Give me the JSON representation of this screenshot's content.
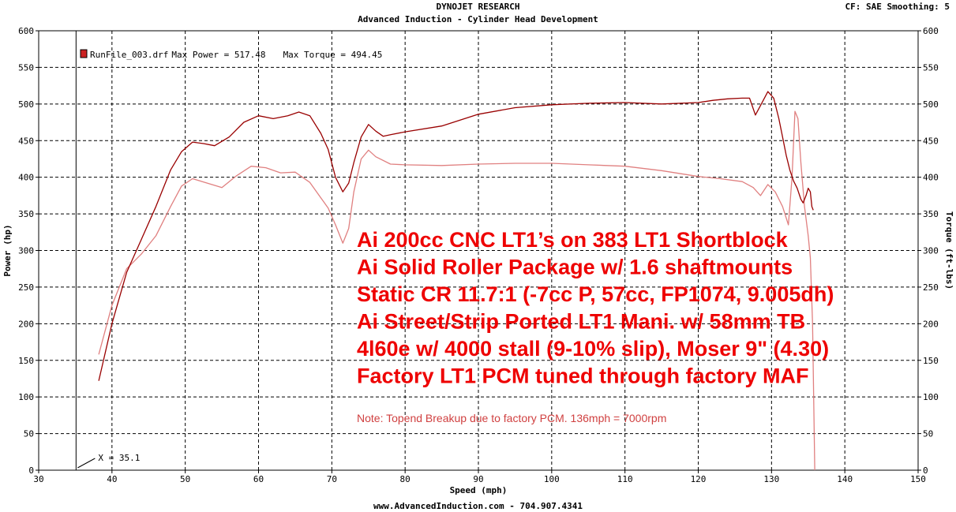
{
  "header": {
    "title": "DYNOJET RESEARCH",
    "subtitle": "Advanced Induction - Cylinder Head Development",
    "cf": "CF: SAE  Smoothing: 5"
  },
  "footer": "www.AdvancedInduction.com  -  704.907.4341",
  "colors": {
    "power_line": "#990000",
    "torque_line": "#e08080",
    "grid": "#000000",
    "annotation": "#ee0000",
    "note": "#d04040",
    "legend_swatch": "#cc2222"
  },
  "cursor": {
    "label": "X = 35.1",
    "x": 35.1
  },
  "annotations": [
    "Ai 200cc CNC LT1’s on 383 LT1 Shortblock",
    "Ai Solid Roller Package w/ 1.6 shaftmounts",
    "Static CR 11.7:1 (-7cc P, 57cc, FP1074, 9.005dh)",
    "Ai Street/Strip Ported LT1 Mani. w/ 58mm TB",
    "4l60e w/ 4000 stall (9-10% slip), Moser 9\" (4.30)",
    "Factory LT1 PCM tuned through factory MAF"
  ],
  "note": "Note: Topend Breakup due to factory PCM.   136mph = 7000rpm",
  "chart_data": {
    "type": "line",
    "title": "DYNOJET RESEARCH",
    "subtitle": "Advanced Induction - Cylinder Head Development",
    "xlabel": "Speed (mph)",
    "ylabel": "Power (hp)",
    "y2label": "Torque (ft-lbs)",
    "xlim": [
      30,
      150
    ],
    "ylim": [
      0,
      600
    ],
    "y2lim": [
      0,
      600
    ],
    "xticks": [
      30,
      40,
      50,
      60,
      70,
      80,
      90,
      100,
      110,
      120,
      130,
      140,
      150
    ],
    "yticks": [
      0,
      50,
      100,
      150,
      200,
      250,
      300,
      350,
      400,
      450,
      500,
      550,
      600
    ],
    "grid": true,
    "legend": {
      "position": "top-left",
      "file": "RunFile_003.drf",
      "max_power_label": "Max Power = 517.48",
      "max_torque_label": "Max Torque = 494.45"
    },
    "series": [
      {
        "name": "Power",
        "axis": "left",
        "x": [
          38.2,
          40,
          42,
          44,
          46,
          48,
          49.5,
          51,
          52.5,
          54,
          56,
          58,
          60,
          62,
          64,
          65.5,
          67,
          68.5,
          69.5,
          70.5,
          71.5,
          72.3,
          73,
          74,
          75,
          76,
          77,
          78,
          80,
          85,
          90,
          95,
          100,
          105,
          110,
          115,
          120,
          122,
          124,
          126,
          127,
          127.8,
          128.5,
          129.5,
          130.3,
          131,
          131.5,
          132,
          132.5,
          133,
          133.5,
          134,
          134.3,
          134.7,
          135,
          135.3,
          135.5,
          135.7
        ],
        "y": [
          122,
          200,
          270,
          315,
          360,
          410,
          435,
          448,
          446,
          443,
          455,
          475,
          484,
          480,
          484,
          489,
          484,
          460,
          438,
          400,
          380,
          392,
          420,
          455,
          472,
          463,
          456,
          458,
          462,
          470,
          486,
          495,
          499,
          501,
          502,
          500,
          502,
          505,
          507,
          508,
          508,
          485,
          498,
          517,
          508,
          480,
          455,
          430,
          410,
          395,
          385,
          370,
          365,
          375,
          385,
          380,
          360,
          355
        ]
      },
      {
        "name": "Torque",
        "axis": "right",
        "x": [
          38.2,
          40,
          42,
          44,
          46,
          48,
          49.5,
          51,
          53,
          55,
          57,
          59,
          61,
          63,
          65,
          67,
          68.5,
          69.5,
          70.5,
          71.5,
          72.3,
          73,
          74,
          75,
          76,
          78,
          80,
          85,
          90,
          95,
          100,
          105,
          110,
          115,
          120,
          123,
          126,
          127.5,
          128.5,
          129.5,
          130.5,
          131.5,
          132.3,
          132.8,
          133.2,
          133.6,
          134,
          134.5,
          135,
          135.3,
          135.6,
          135.9
        ],
        "y": [
          158,
          225,
          275,
          295,
          320,
          360,
          388,
          398,
          392,
          386,
          402,
          415,
          413,
          406,
          407,
          393,
          372,
          358,
          335,
          310,
          330,
          380,
          425,
          437,
          428,
          418,
          417,
          416,
          418,
          419,
          419,
          417,
          415,
          409,
          401,
          398,
          394,
          386,
          375,
          390,
          380,
          360,
          335,
          400,
          490,
          480,
          420,
          360,
          320,
          290,
          200,
          0
        ]
      }
    ]
  }
}
